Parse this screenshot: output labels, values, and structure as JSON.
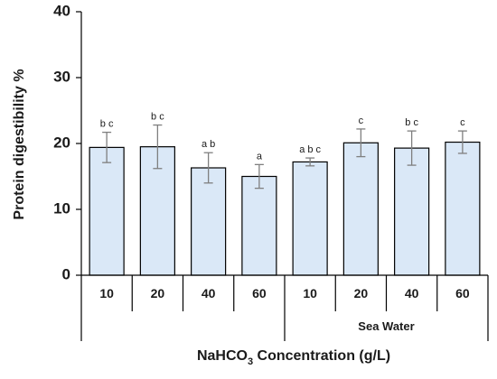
{
  "chart_data": {
    "type": "bar",
    "ylabel": "Protein digestibility %",
    "xlabel": {
      "pre": "NaHCO",
      "sub": "3",
      "post": " Concentration (g/L)"
    },
    "ylim": [
      0,
      40
    ],
    "yticks": [
      0,
      10,
      20,
      30,
      40
    ],
    "categories": [
      "10",
      "20",
      "40",
      "60",
      "10",
      "20",
      "40",
      "60"
    ],
    "values": [
      19.4,
      19.5,
      16.3,
      15.0,
      17.2,
      20.1,
      19.3,
      20.2
    ],
    "errors": [
      2.3,
      3.3,
      2.3,
      1.8,
      0.6,
      2.1,
      2.6,
      1.7
    ],
    "significance": [
      "b c",
      "b c",
      "a b",
      "a",
      "a b c",
      "c",
      "b c",
      "c"
    ],
    "groups": [
      {
        "label": "",
        "categories": [
          0,
          1,
          2,
          3
        ]
      },
      {
        "label": "Sea Water",
        "categories": [
          4,
          5,
          6,
          7
        ]
      }
    ],
    "bar_fill": "#dae8f7",
    "bar_stroke": "#000000",
    "error_color": "#7f7f7f",
    "grid": false,
    "legend": "none"
  }
}
